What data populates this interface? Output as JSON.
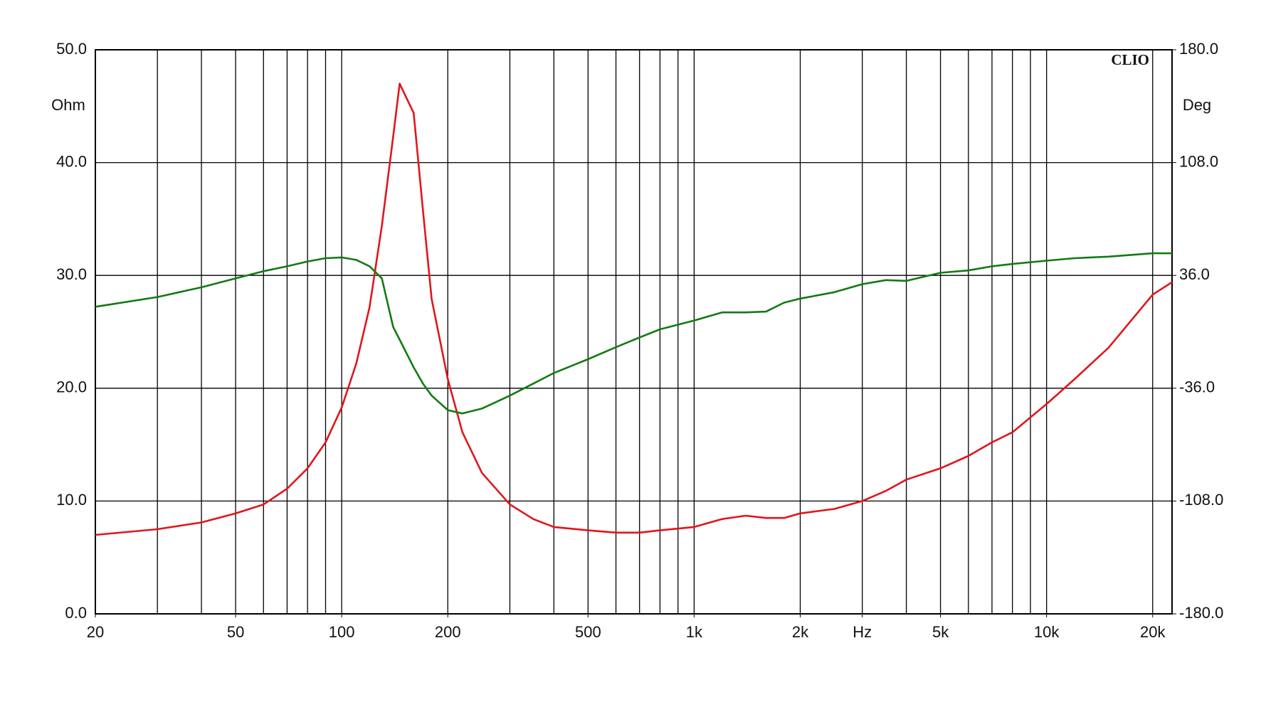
{
  "chart_data": {
    "type": "line",
    "left_unit": "Ohm",
    "right_unit": "Deg",
    "brand": "CLIO",
    "log_x": true,
    "grid": true,
    "xlim": [
      20,
      22700
    ],
    "xticks": [
      20,
      50,
      100,
      200,
      500,
      {
        "value": 1000,
        "label": "1k"
      },
      {
        "value": 2000,
        "label": "2k"
      },
      {
        "value": 3000,
        "label": "Hz"
      },
      {
        "value": 5000,
        "label": "5k"
      },
      {
        "value": 10000,
        "label": "10k"
      },
      {
        "value": 20000,
        "label": "20k"
      }
    ],
    "xgrid": [
      30,
      40,
      50,
      60,
      70,
      80,
      90,
      100,
      200,
      300,
      400,
      500,
      600,
      700,
      800,
      900,
      1000,
      2000,
      3000,
      4000,
      5000,
      6000,
      7000,
      8000,
      9000,
      10000,
      20000
    ],
    "ylim": [
      0,
      50
    ],
    "yticks": [
      {
        "value": 0,
        "label": "0.0"
      },
      {
        "value": 10,
        "label": "10.0"
      },
      {
        "value": 20,
        "label": "20.0"
      },
      {
        "value": 30,
        "label": "30.0"
      },
      {
        "value": 40,
        "label": "40.0"
      },
      {
        "value": 50,
        "label": "50.0"
      }
    ],
    "y2lim": [
      -180,
      180
    ],
    "y2ticks": [
      {
        "value": -180,
        "label": "-180.0"
      },
      {
        "value": -108,
        "label": "-108.0"
      },
      {
        "value": -36,
        "label": "-36.0"
      },
      {
        "value": 36,
        "label": "36.0"
      },
      {
        "value": 108,
        "label": "108.0"
      },
      {
        "value": 180,
        "label": "180.0"
      }
    ],
    "x": [
      20,
      30,
      40,
      50,
      60,
      70,
      80,
      90,
      100,
      110,
      120,
      130,
      140,
      146,
      160,
      170,
      180,
      200,
      220,
      250,
      300,
      350,
      400,
      500,
      600,
      700,
      800,
      1000,
      1200,
      1400,
      1600,
      1800,
      2000,
      2500,
      3000,
      3500,
      4000,
      5000,
      6000,
      7000,
      8000,
      10000,
      12000,
      15000,
      20000,
      22700
    ],
    "series": [
      {
        "color": "#e0161b",
        "values": [
          7.0,
          7.5,
          8.1,
          8.9,
          9.7,
          11.1,
          12.9,
          15.2,
          18.3,
          22.2,
          27.2,
          34.4,
          42.3,
          47.0,
          44.4,
          35.8,
          27.9,
          20.8,
          16.1,
          12.5,
          9.7,
          8.4,
          7.7,
          7.4,
          7.2,
          7.2,
          7.4,
          7.7,
          8.4,
          8.7,
          8.5,
          8.5,
          8.9,
          9.3,
          10.0,
          10.9,
          11.9,
          12.9,
          14.0,
          15.2,
          16.1,
          18.6,
          20.8,
          23.6,
          28.3,
          29.4
        ]
      },
      {
        "color": "#137a13",
        "axis": "y2",
        "values": [
          16.0,
          22.2,
          28.4,
          34.1,
          38.7,
          41.8,
          44.9,
          47.0,
          47.5,
          45.9,
          41.8,
          34.1,
          3.1,
          -5.0,
          -22.7,
          -33.0,
          -40.7,
          -50.0,
          -52.1,
          -49.0,
          -40.7,
          -33.0,
          -26.3,
          -17.5,
          -9.8,
          -3.6,
          1.6,
          7.2,
          12.4,
          12.4,
          12.9,
          18.6,
          21.2,
          25.3,
          30.4,
          33.0,
          32.5,
          37.7,
          39.2,
          41.8,
          43.3,
          45.4,
          47.0,
          48.0,
          50.1,
          50.1
        ]
      }
    ]
  }
}
